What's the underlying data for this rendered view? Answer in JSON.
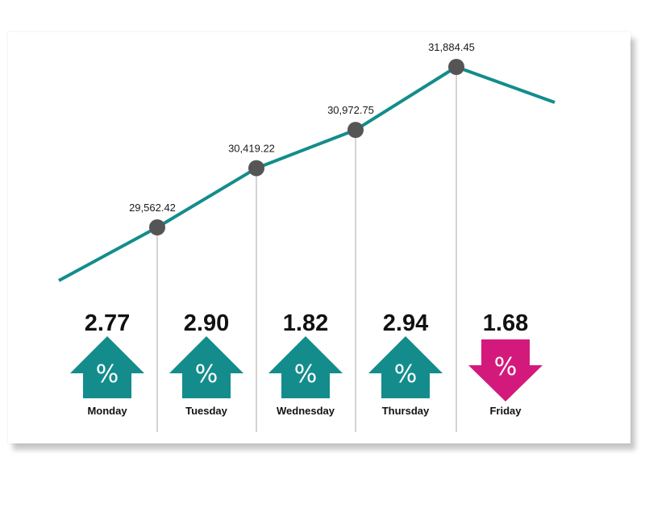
{
  "chart_data": {
    "type": "line",
    "categories": [
      "Monday",
      "Tuesday",
      "Wednesday",
      "Thursday",
      "Friday"
    ],
    "values": [
      29562.42,
      30419.22,
      30972.75,
      31884.45,
      null
    ],
    "value_labels": [
      "29,562.42",
      "30,419.22",
      "30,972.75",
      "31,884.45",
      ""
    ],
    "change_percent": [
      "2.77",
      "2.90",
      "1.82",
      "2.94",
      "1.68"
    ],
    "change_direction": [
      "up",
      "up",
      "up",
      "up",
      "down"
    ],
    "change_symbol": "%",
    "grid": false,
    "title": "",
    "xlabel": "",
    "ylabel": ""
  },
  "colors": {
    "line": "#148c8c",
    "up": "#148c8c",
    "down": "#d31a7c",
    "marker": "#555555",
    "guide": "#aaaaaa"
  }
}
